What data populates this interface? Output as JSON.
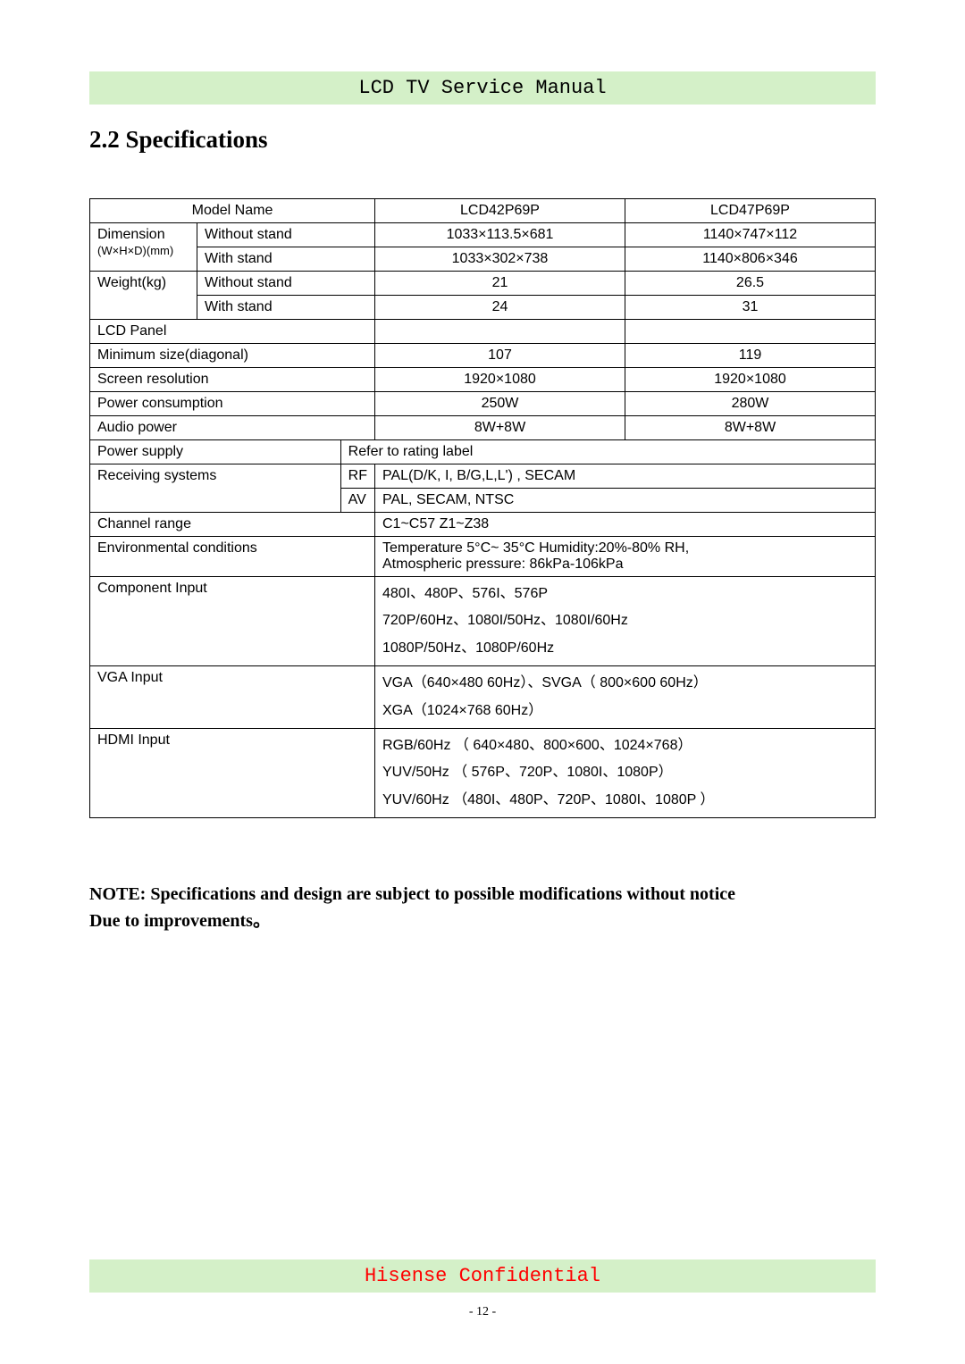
{
  "header": {
    "title": "LCD TV Service Manual"
  },
  "section": {
    "title": "2.2 Specifications"
  },
  "table": {
    "model_name_label": "Model Name",
    "model_a": "LCD42P69P",
    "model_b": "LCD47P69P",
    "dimension_label": "Dimension",
    "dimension_unit": "(W×H×D)(mm)",
    "without_stand": "Without stand",
    "with_stand": "With stand",
    "dim_a_nostand": "1033×113.5×681",
    "dim_b_nostand": "1140×747×112",
    "dim_a_stand": "1033×302×738",
    "dim_b_stand": "1140×806×346",
    "weight_label": "Weight(kg)",
    "weight_a_nostand": "21",
    "weight_b_nostand": "26.5",
    "weight_a_stand": "24",
    "weight_b_stand": "31",
    "lcd_panel_label": "LCD Panel",
    "min_size_label": "Minimum size(diagonal)",
    "min_size_a": "107",
    "min_size_b": "119",
    "screen_res_label": "Screen resolution",
    "screen_res_a": "1920×1080",
    "screen_res_b": "1920×1080",
    "power_cons_label": "Power consumption",
    "power_cons_a": "250W",
    "power_cons_b": "280W",
    "audio_power_label": "Audio power",
    "audio_power_a": "8W+8W",
    "audio_power_b": "8W+8W",
    "power_supply_label": "Power supply",
    "power_supply_val": "Refer to rating label",
    "recv_sys_label": "Receiving systems",
    "rf_label": "RF",
    "rf_val": "PAL(D/K, I, B/G,L,L') , SECAM",
    "av_label": "AV",
    "av_val": "PAL, SECAM, NTSC",
    "channel_range_label": "Channel range",
    "channel_range_val": "C1~C57   Z1~Z38",
    "env_cond_label": "Environmental conditions",
    "env_cond_1": "Temperature 5°C~ 35°C  Humidity:20%-80% RH,",
    "env_cond_2": "Atmospheric pressure: 86kPa-106kPa",
    "component_label": "Component Input",
    "component_1": "480I、480P、576I、576P",
    "component_2": "720P/60Hz、1080I/50Hz、1080I/60Hz",
    "component_3": "1080P/50Hz、1080P/60Hz",
    "vga_label": "VGA Input",
    "vga_1": "VGA（640×480  60Hz）、SVGA（ 800×600  60Hz）",
    "vga_2": "XGA（1024×768  60Hz）",
    "hdmi_label": "HDMI Input",
    "hdmi_1": "RGB/60Hz （ 640×480、800×600、1024×768）",
    "hdmi_2": "YUV/50Hz （ 576P、720P、1080I、1080P）",
    "hdmi_3": "YUV/60Hz （480I、480P、720P、1080I、1080P ）"
  },
  "note_line1": "NOTE: Specifications and design are subject to possible modifications without notice",
  "note_line2": "Due to improvements。",
  "footer": {
    "text": "Hisense Confidential"
  },
  "page_number": "- 12 -"
}
